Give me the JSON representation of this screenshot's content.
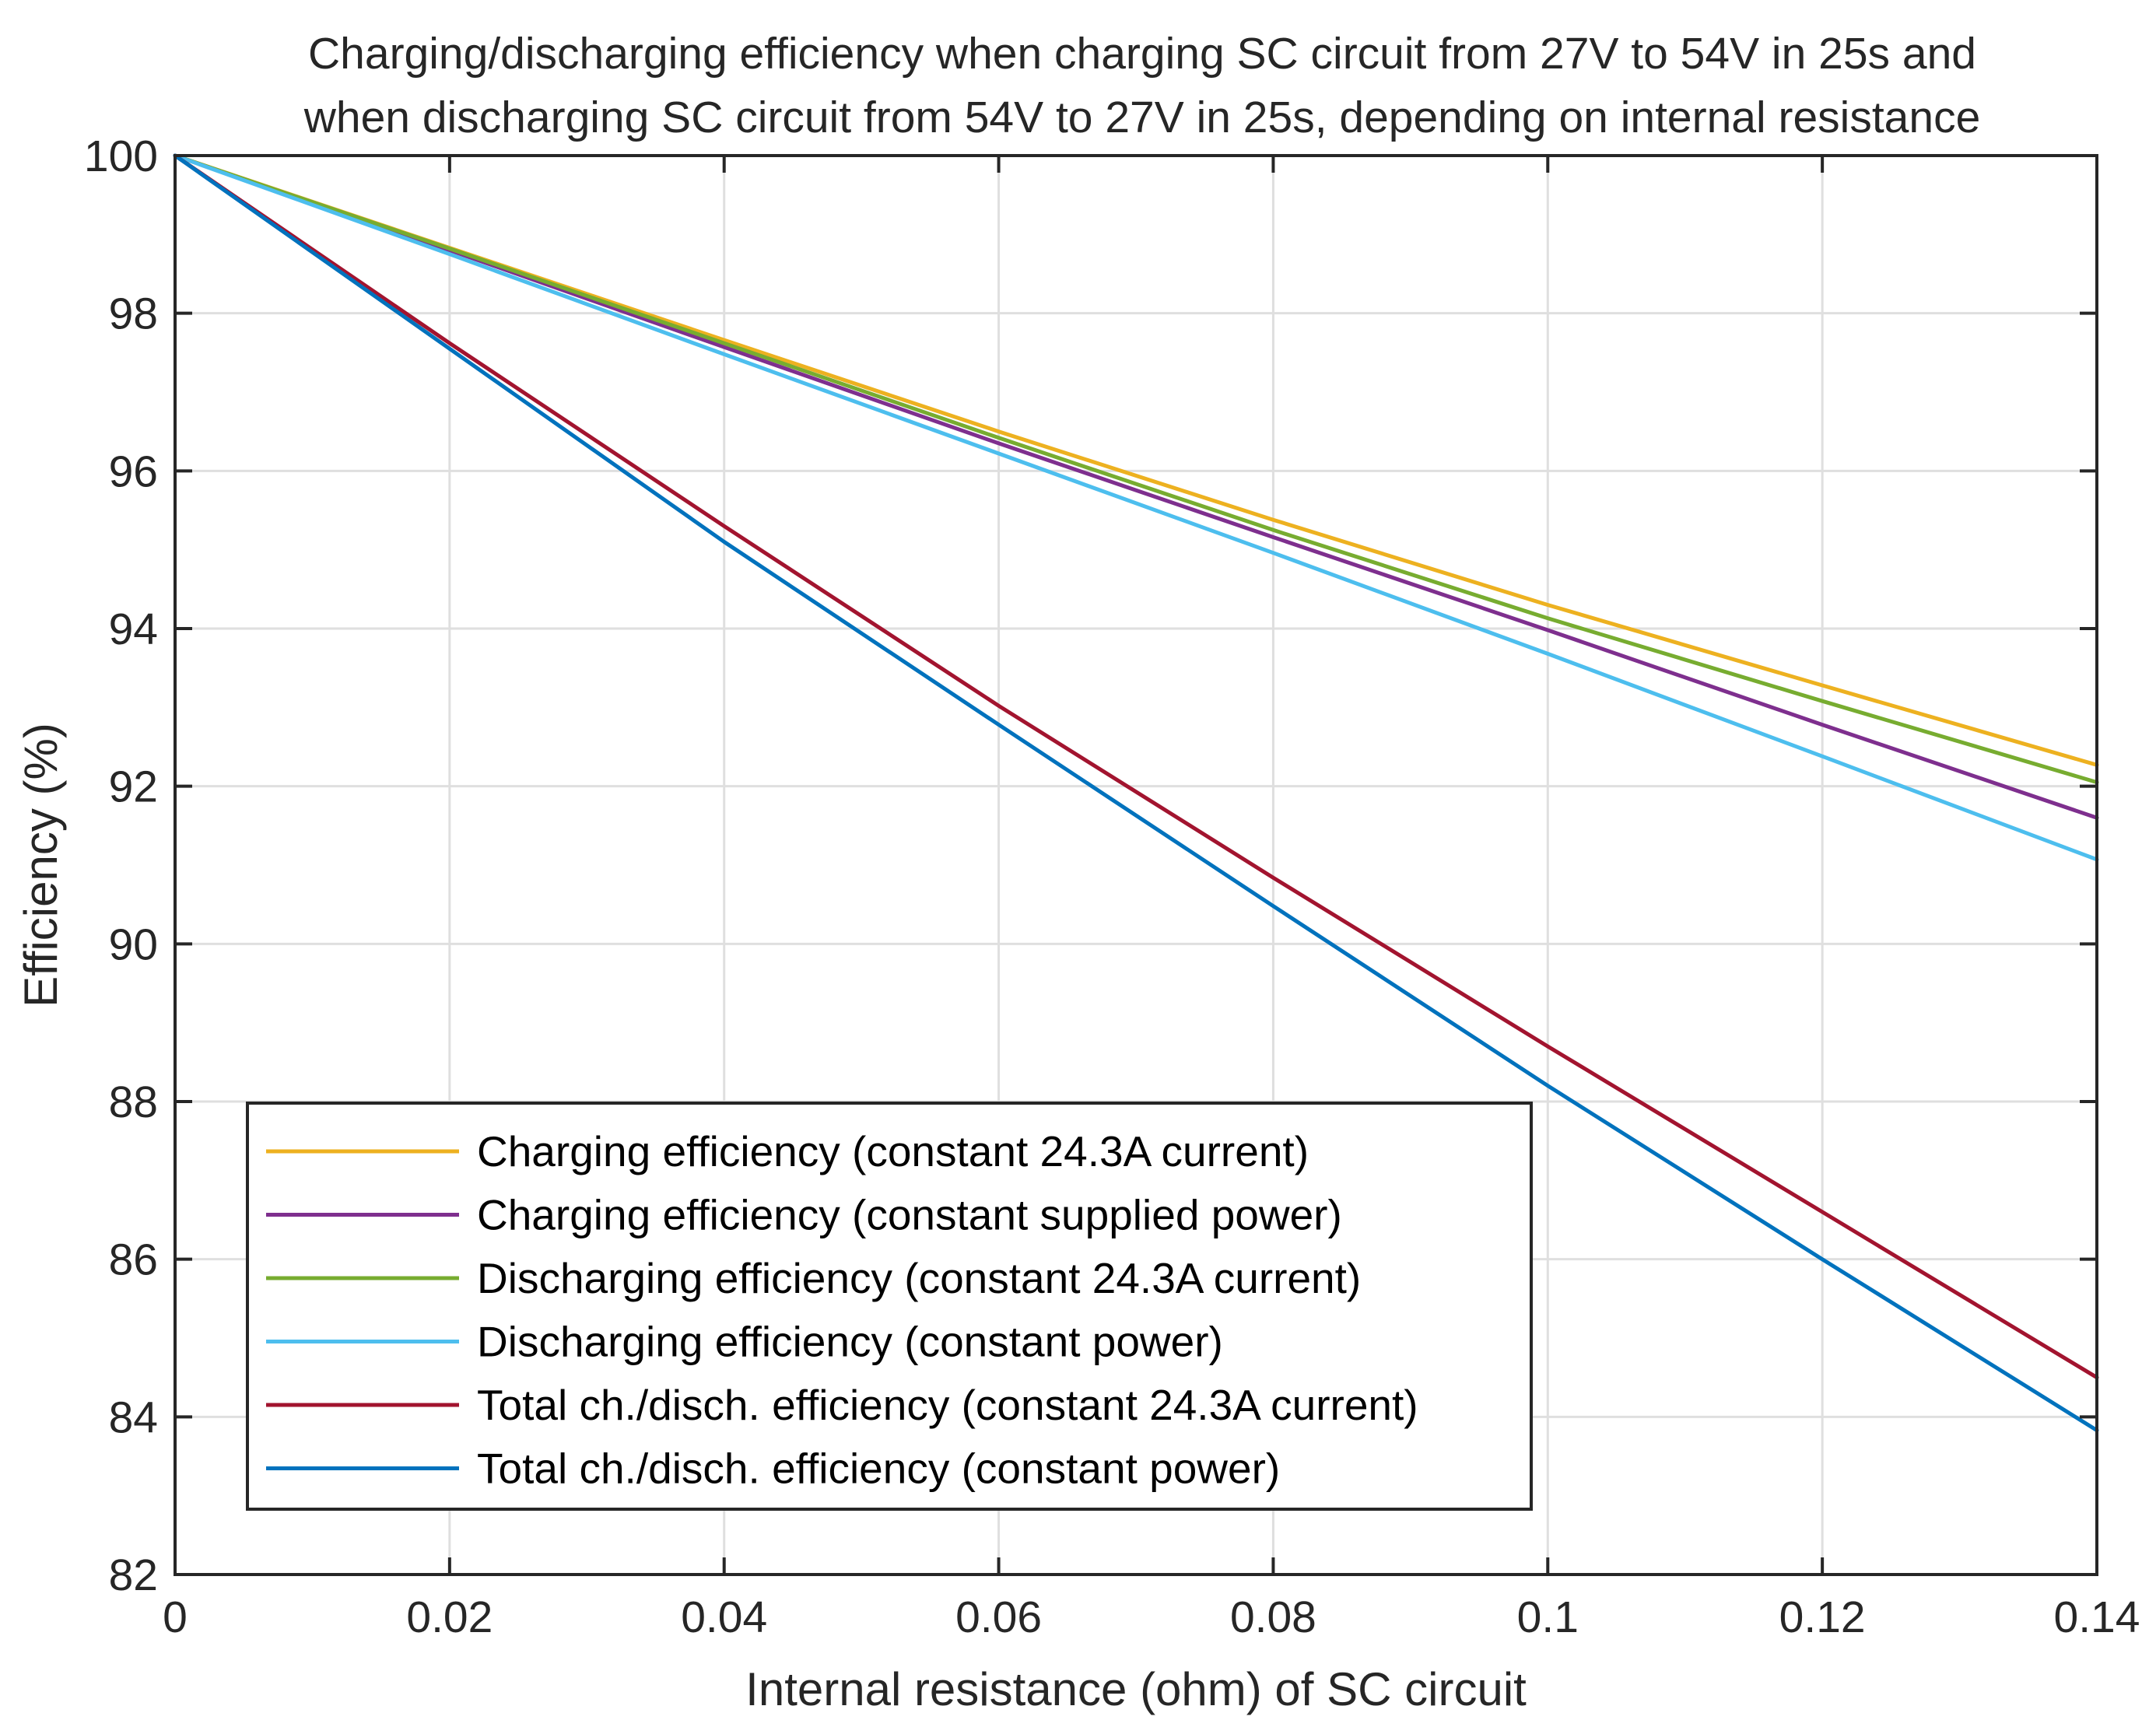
{
  "chart_data": {
    "type": "line",
    "title_lines": [
      "Charging/discharging efficiency when charging SC circuit from 27V to 54V in 25s and",
      "when discharging SC circuit from 54V to 27V in 25s, depending on internal resistance"
    ],
    "xlabel": "Internal resistance (ohm) of SC circuit",
    "ylabel": "Efficiency (%)",
    "xlim": [
      0,
      0.14
    ],
    "ylim": [
      82,
      100
    ],
    "xticks": [
      0,
      0.02,
      0.04,
      0.06,
      0.08,
      0.1,
      0.12,
      0.14
    ],
    "xtick_labels": [
      "0",
      "0.02",
      "0.04",
      "0.06",
      "0.08",
      "0.1",
      "0.12",
      "0.14"
    ],
    "yticks": [
      82,
      84,
      86,
      88,
      90,
      92,
      94,
      96,
      98,
      100
    ],
    "ytick_labels": [
      "82",
      "84",
      "86",
      "88",
      "90",
      "92",
      "94",
      "96",
      "98",
      "100"
    ],
    "grid": true,
    "legend_location": "lower-left",
    "series": [
      {
        "name": "Charging efficiency (constant 24.3A current)",
        "color": "#EDB120",
        "x": [
          0,
          0.02,
          0.04,
          0.06,
          0.08,
          0.1,
          0.12,
          0.14
        ],
        "y": [
          100,
          98.83,
          97.66,
          96.5,
          95.38,
          94.3,
          93.28,
          92.27
        ]
      },
      {
        "name": "Charging efficiency (constant supplied power)",
        "color": "#7E2F8E",
        "x": [
          0,
          0.02,
          0.04,
          0.06,
          0.08,
          0.1,
          0.12,
          0.14
        ],
        "y": [
          100,
          98.8,
          97.57,
          96.35,
          95.16,
          93.98,
          92.78,
          91.6
        ]
      },
      {
        "name": "Discharging efficiency (constant 24.3A current)",
        "color": "#77AC30",
        "x": [
          0,
          0.02,
          0.04,
          0.06,
          0.08,
          0.1,
          0.12,
          0.14
        ],
        "y": [
          100,
          98.82,
          97.62,
          96.42,
          95.25,
          94.13,
          93.08,
          92.05
        ]
      },
      {
        "name": "Discharging efficiency (constant power)",
        "color": "#4DBEEE",
        "x": [
          0,
          0.02,
          0.04,
          0.06,
          0.08,
          0.1,
          0.12,
          0.14
        ],
        "y": [
          100,
          98.75,
          97.48,
          96.22,
          94.96,
          93.68,
          92.38,
          91.07
        ]
      },
      {
        "name": "Total ch./disch. efficiency (constant 24.3A current)",
        "color": "#A2142F",
        "x": [
          0,
          0.02,
          0.04,
          0.06,
          0.08,
          0.1,
          0.12,
          0.14
        ],
        "y": [
          100,
          97.62,
          95.3,
          93.02,
          90.84,
          88.7,
          86.6,
          84.5
        ]
      },
      {
        "name": "Total ch./disch. efficiency (constant power)",
        "color": "#0072BD",
        "x": [
          0,
          0.02,
          0.04,
          0.06,
          0.08,
          0.1,
          0.12,
          0.14
        ],
        "y": [
          100,
          97.55,
          95.1,
          92.78,
          90.48,
          88.2,
          86.0,
          83.83
        ]
      }
    ]
  }
}
